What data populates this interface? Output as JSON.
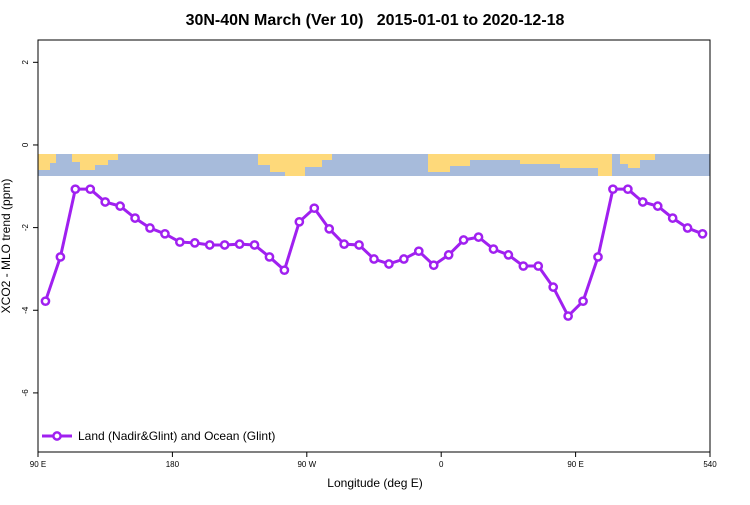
{
  "chart_data": {
    "type": "line",
    "title": "30N-40N March (Ver 10)   2015-01-01 to 2020-12-18",
    "x_label": "Longitude (deg E)",
    "y_label": "XCO2 - MLO trend (ppm)",
    "x": [
      95,
      105,
      115,
      125,
      135,
      145,
      155,
      165,
      175,
      185,
      195,
      205,
      215,
      225,
      235,
      245,
      255,
      265,
      275,
      285,
      295,
      305,
      315,
      325,
      335,
      345,
      355,
      365,
      375,
      385,
      395,
      405,
      415,
      425,
      435,
      445,
      455,
      465,
      475,
      485,
      495,
      505,
      515,
      525,
      535
    ],
    "series": [
      {
        "name": "Land (Nadir&Glint) and Ocean (Glint)",
        "color": "#a020f0",
        "values": [
          -3.78,
          -2.71,
          -1.07,
          -1.07,
          -1.38,
          -1.48,
          -1.77,
          -2.01,
          -2.15,
          -2.35,
          -2.37,
          -2.42,
          -2.42,
          -2.4,
          -2.42,
          -2.71,
          -3.03,
          -1.86,
          -1.53,
          -2.03,
          -2.4,
          -2.42,
          -2.76,
          -2.88,
          -2.76,
          -2.57,
          -2.91,
          -2.66,
          -2.3,
          -2.23,
          -2.52,
          -2.66,
          -2.93,
          -2.93,
          -3.44,
          -4.14,
          -3.78,
          -2.71,
          -1.07,
          -1.07,
          -1.38,
          -1.48,
          -1.77,
          -2.01,
          -2.15
        ]
      }
    ],
    "xlim": [
      90,
      540
    ],
    "xticks": [
      {
        "value": 90,
        "label": "90 E"
      },
      180,
      {
        "value": 270,
        "label": "90 W"
      },
      {
        "value": 360,
        "label": "0"
      },
      {
        "value": 450,
        "label": "90 E"
      },
      540
    ],
    "ylim": [
      -7.43,
      2.54
    ],
    "yticks": [
      2,
      0,
      -2,
      -4,
      -6
    ],
    "legend": "bottom-left"
  }
}
